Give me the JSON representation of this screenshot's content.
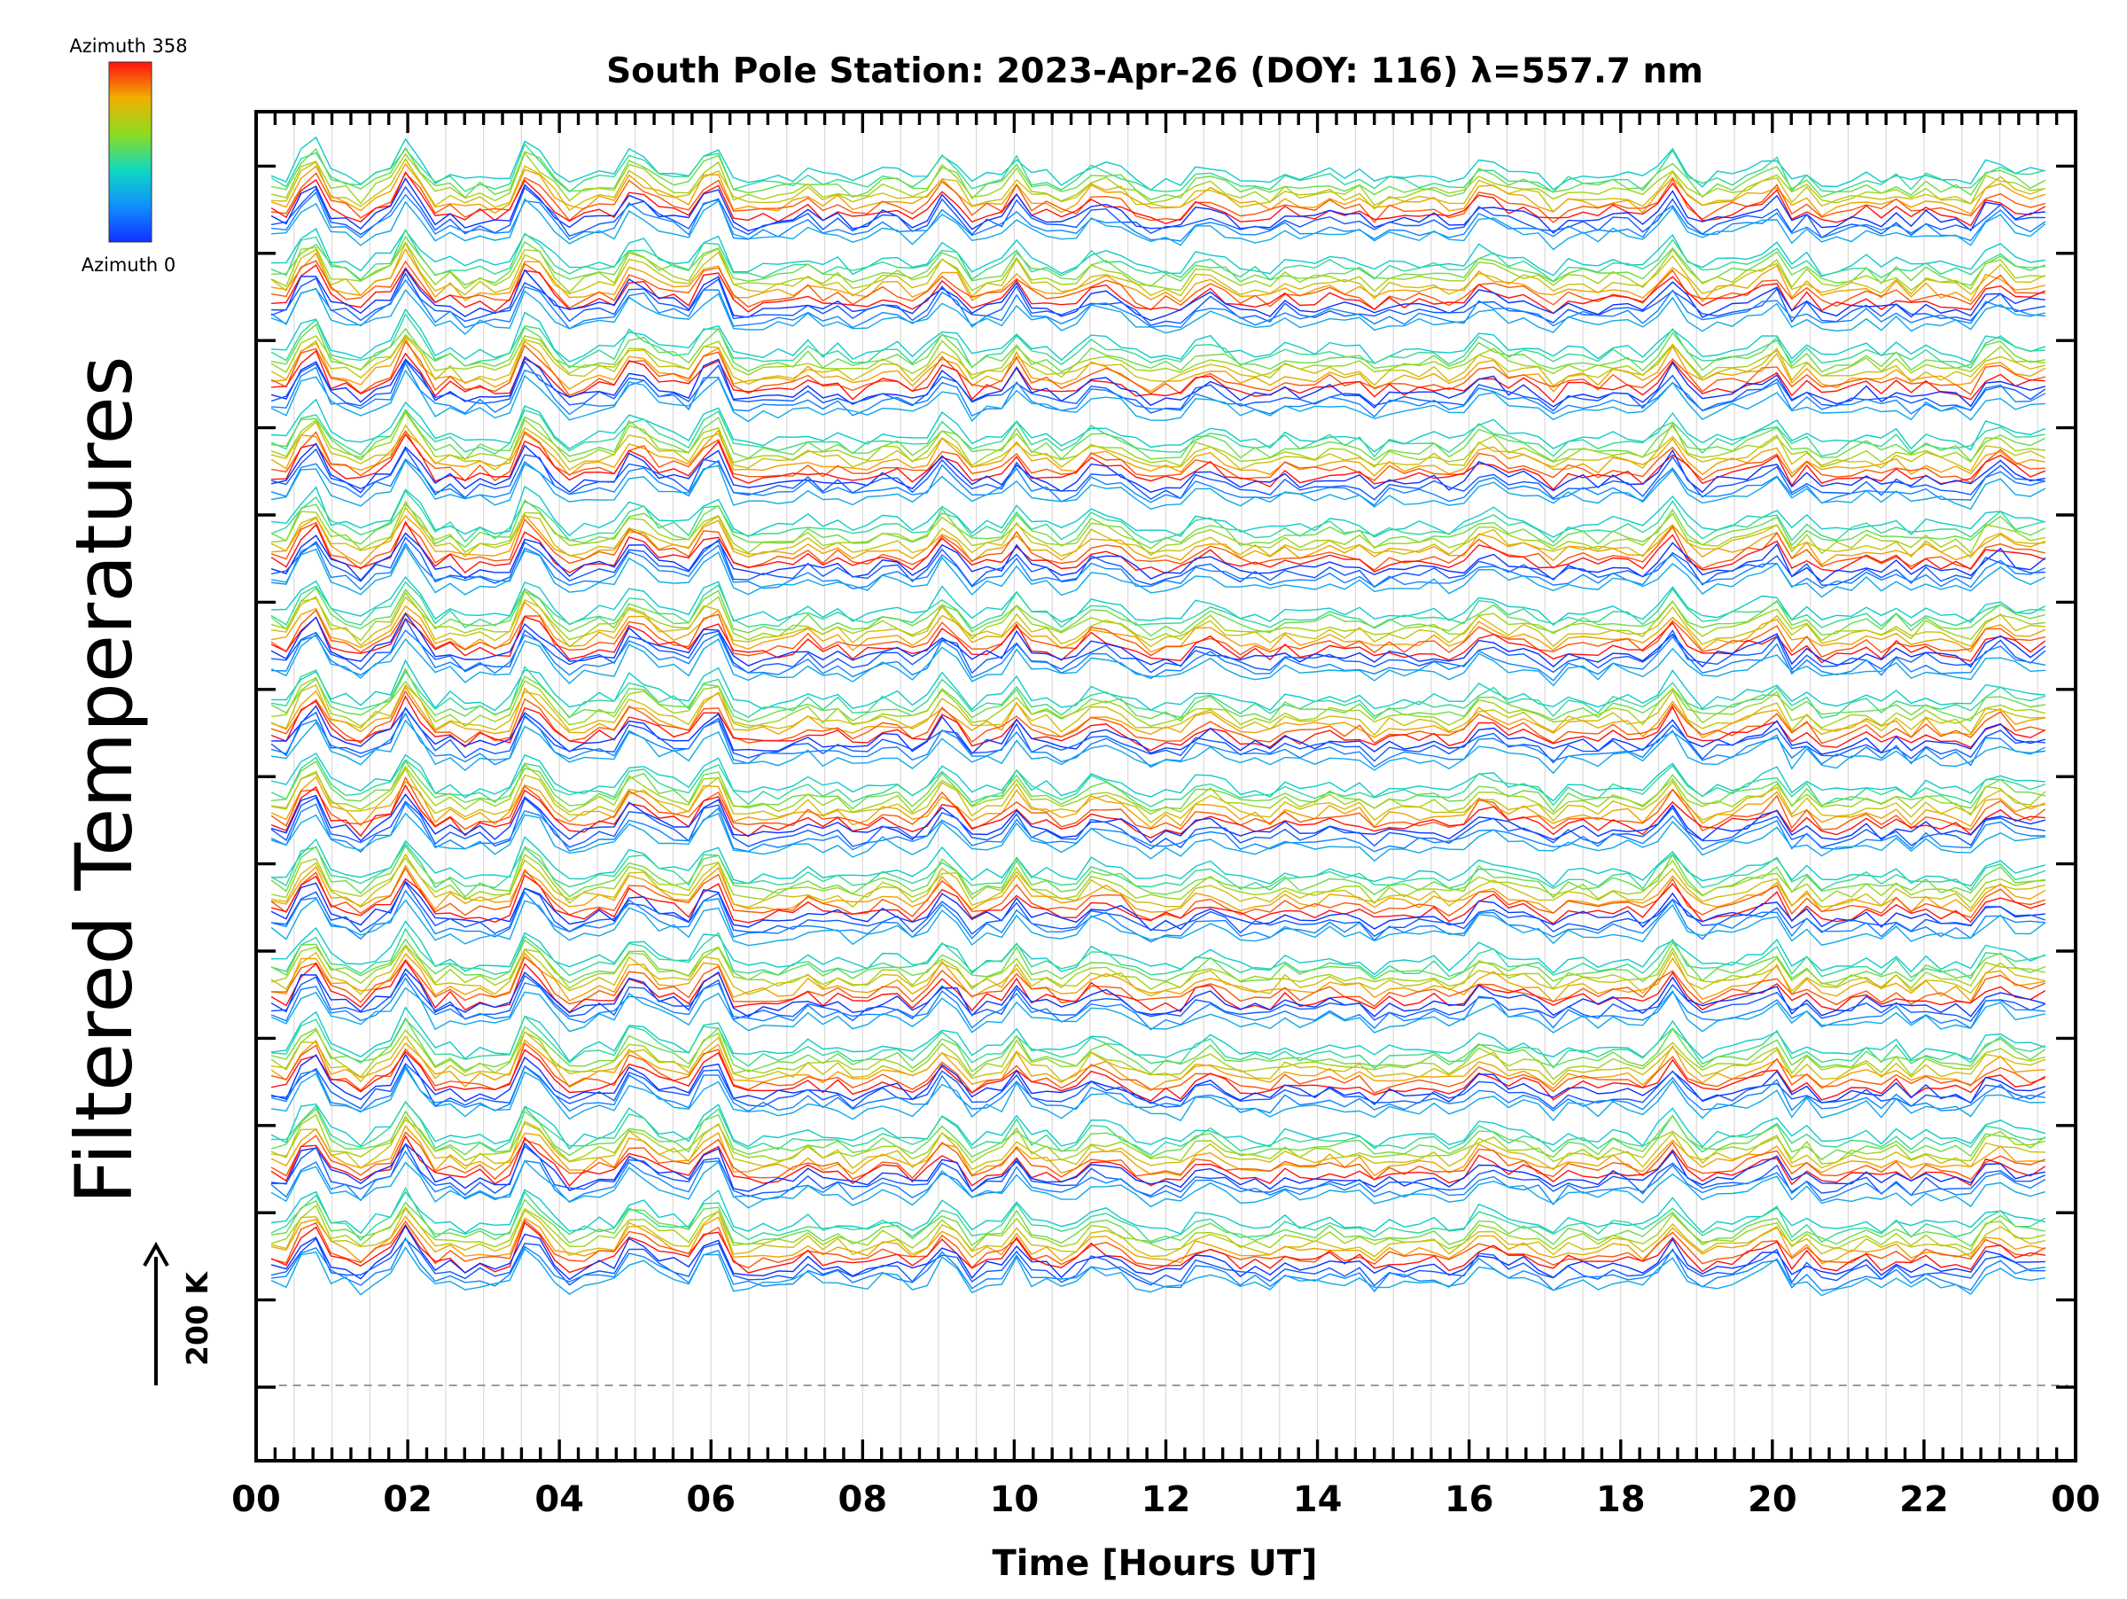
{
  "chart_data": {
    "type": "line",
    "title": "South Pole Station: 2023-Apr-26 (DOY: 116) λ=557.7 nm",
    "xlabel": "Time [Hours UT]",
    "ylabel": "Filtered Temperatures",
    "xlim": [
      0,
      24
    ],
    "x_tick_labels": [
      "00",
      "02",
      "04",
      "06",
      "08",
      "10",
      "12",
      "14",
      "16",
      "18",
      "20",
      "22",
      "00"
    ],
    "colorbar": {
      "label_top": "Azimuth 358",
      "label_bottom": "Azimuth 0",
      "colormap": "rainbow (blue to red)",
      "range": [
        0,
        358
      ]
    },
    "scale_bar": {
      "label": "200 K"
    },
    "zenith_series": "dashed baseline",
    "grid": true,
    "grid_style": "vertical lines every 0.5 h",
    "stacked_groups": 13,
    "azimuth_directions_per_group": 12,
    "group_peak_times_hours": [
      0.7,
      2.0,
      3.6,
      5.0,
      6.0,
      9.1,
      10.0,
      11.1,
      12.6,
      16.3,
      18.7,
      20.0,
      22.9
    ],
    "colors": {
      "azimuth_0": "#1a3cff",
      "azimuth_358": "#ff1a1a",
      "axis": "#000000",
      "grid": "#d9d9d9",
      "dashed_baseline": "#9a9a9a"
    }
  }
}
